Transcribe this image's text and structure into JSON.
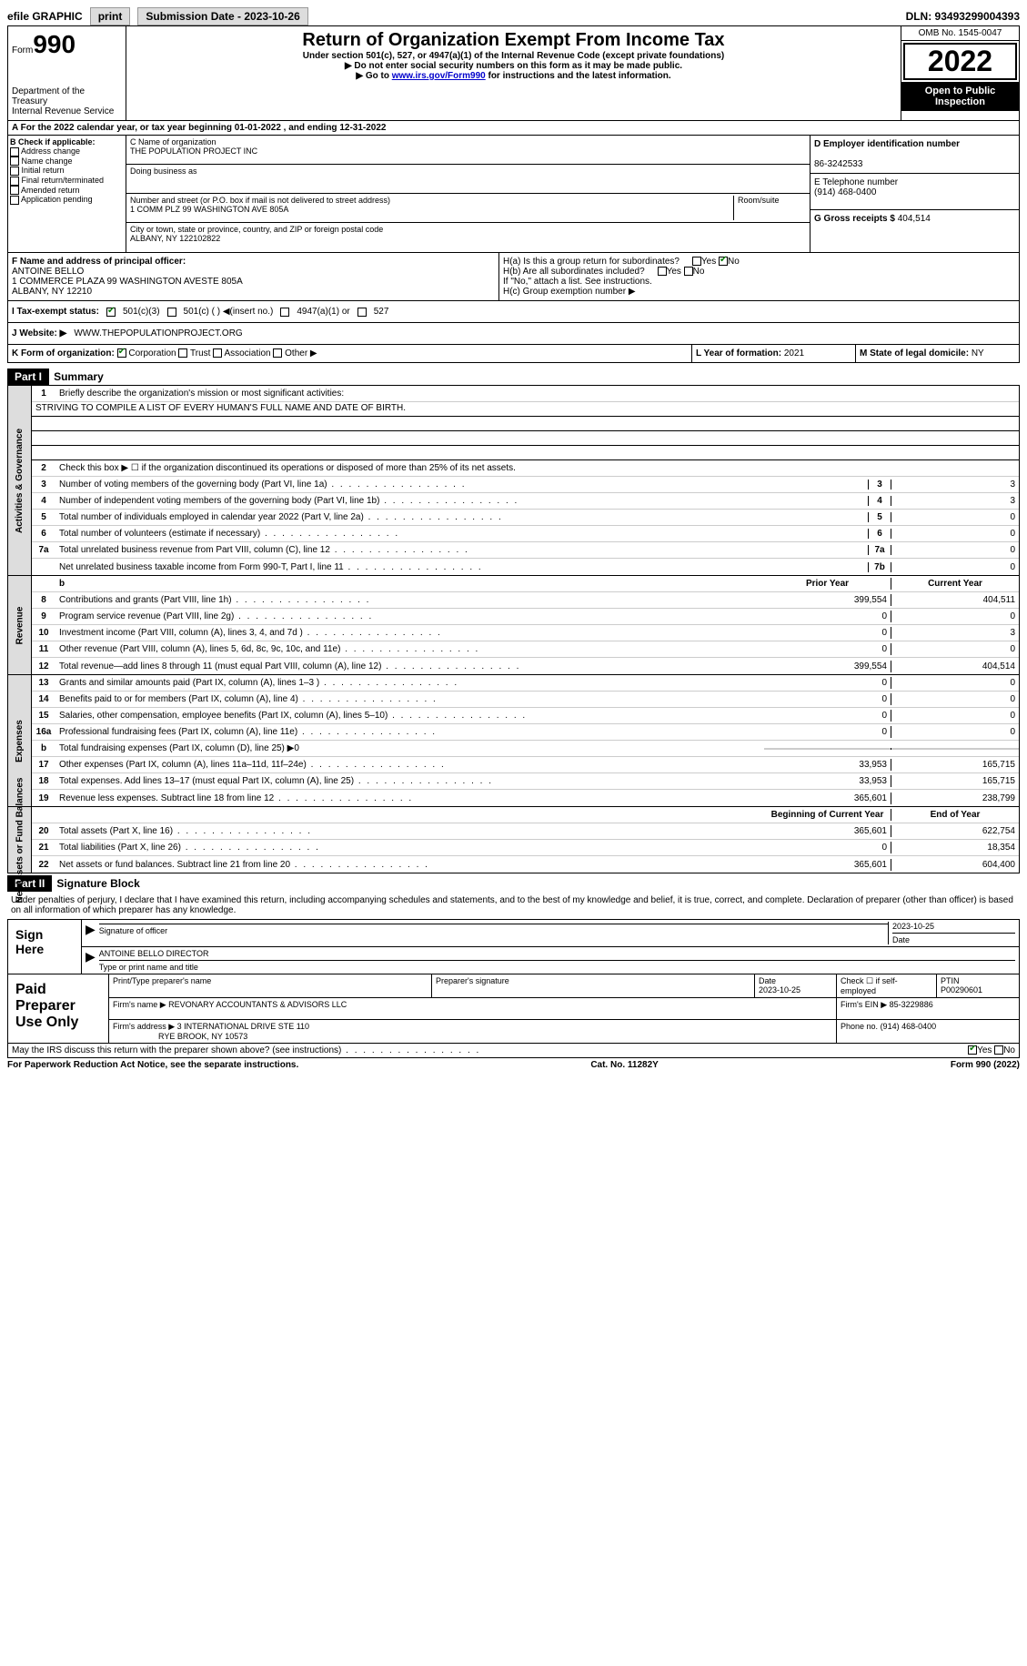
{
  "top": {
    "efile": "efile GRAPHIC",
    "print": "print",
    "sub_label": "Submission Date - 2023-10-26",
    "dln": "DLN: 93493299004393"
  },
  "hdr": {
    "form_label": "Form",
    "form_no": "990",
    "title": "Return of Organization Exempt From Income Tax",
    "sub1": "Under section 501(c), 527, or 4947(a)(1) of the Internal Revenue Code (except private foundations)",
    "sub2": "▶ Do not enter social security numbers on this form as it may be made public.",
    "sub3": "▶ Go to www.irs.gov/Form990 for instructions and the latest information.",
    "dept": "Department of the Treasury",
    "irs": "Internal Revenue Service",
    "omb": "OMB No. 1545-0047",
    "year": "2022",
    "open": "Open to Public Inspection"
  },
  "rowA": "A For the 2022 calendar year, or tax year beginning 01-01-2022    , and ending 12-31-2022",
  "colB": {
    "hdr": "B Check if applicable:",
    "opts": [
      "Address change",
      "Name change",
      "Initial return",
      "Final return/terminated",
      "Amended return",
      "Application pending"
    ]
  },
  "colC": {
    "name_lbl": "C Name of organization",
    "name": "THE POPULATION PROJECT INC",
    "dba_lbl": "Doing business as",
    "addr_lbl": "Number and street (or P.O. box if mail is not delivered to street address)",
    "room_lbl": "Room/suite",
    "addr": "1 COMM PLZ 99 WASHINGTON AVE 805A",
    "city_lbl": "City or town, state or province, country, and ZIP or foreign postal code",
    "city": "ALBANY, NY  122102822"
  },
  "colD": {
    "ein_lbl": "D Employer identification number",
    "ein": "86-3242533",
    "tel_lbl": "E Telephone number",
    "tel": "(914) 468-0400",
    "gross_lbl": "G Gross receipts $",
    "gross": "404,514"
  },
  "f": {
    "lbl": "F  Name and address of principal officer:",
    "name": "ANTOINE BELLO",
    "a1": "1 COMMERCE PLAZA 99 WASHINGTON AVESTE 805A",
    "a2": "ALBANY, NY  12210"
  },
  "h": {
    "a": "H(a)  Is this a group return for subordinates?",
    "b": "H(b)  Are all subordinates included?",
    "note": "If \"No,\" attach a list. See instructions.",
    "c": "H(c)  Group exemption number ▶"
  },
  "i": {
    "lbl": "I   Tax-exempt status:",
    "o1": "501(c)(3)",
    "o2": "501(c) (  ) ◀(insert no.)",
    "o3": "4947(a)(1) or",
    "o4": "527"
  },
  "j": {
    "lbl": "J  Website: ▶",
    "val": "WWW.THEPOPULATIONPROJECT.ORG"
  },
  "k": {
    "lbl": "K Form of organization:",
    "corp": "Corporation",
    "trust": "Trust",
    "assoc": "Association",
    "other": "Other ▶"
  },
  "l": {
    "lbl": "L Year of formation:",
    "val": "2021"
  },
  "m": {
    "lbl": "M State of legal domicile:",
    "val": "NY"
  },
  "part1": {
    "hdr": "Part I",
    "title": "Summary",
    "l1": "Briefly describe the organization's mission or most significant activities:",
    "mission": "STRIVING TO COMPILE A LIST OF EVERY HUMAN'S FULL NAME AND DATE OF BIRTH.",
    "l2": "Check this box ▶ ☐  if the organization discontinued its operations or disposed of more than 25% of its net assets.",
    "lines_gov": [
      {
        "n": "3",
        "d": "Number of voting members of the governing body (Part VI, line 1a)",
        "k": "3",
        "v": "3"
      },
      {
        "n": "4",
        "d": "Number of independent voting members of the governing body (Part VI, line 1b)",
        "k": "4",
        "v": "3"
      },
      {
        "n": "5",
        "d": "Total number of individuals employed in calendar year 2022 (Part V, line 2a)",
        "k": "5",
        "v": "0"
      },
      {
        "n": "6",
        "d": "Total number of volunteers (estimate if necessary)",
        "k": "6",
        "v": "0"
      },
      {
        "n": "7a",
        "d": "Total unrelated business revenue from Part VIII, column (C), line 12",
        "k": "7a",
        "v": "0"
      },
      {
        "n": "",
        "d": "Net unrelated business taxable income from Form 990-T, Part I, line 11",
        "k": "7b",
        "v": "0"
      }
    ],
    "py_hdr": "Prior Year",
    "cy_hdr": "Current Year",
    "lines_rev": [
      {
        "n": "8",
        "d": "Contributions and grants (Part VIII, line 1h)",
        "py": "399,554",
        "cy": "404,511"
      },
      {
        "n": "9",
        "d": "Program service revenue (Part VIII, line 2g)",
        "py": "0",
        "cy": "0"
      },
      {
        "n": "10",
        "d": "Investment income (Part VIII, column (A), lines 3, 4, and 7d )",
        "py": "0",
        "cy": "3"
      },
      {
        "n": "11",
        "d": "Other revenue (Part VIII, column (A), lines 5, 6d, 8c, 9c, 10c, and 11e)",
        "py": "0",
        "cy": "0"
      },
      {
        "n": "12",
        "d": "Total revenue—add lines 8 through 11 (must equal Part VIII, column (A), line 12)",
        "py": "399,554",
        "cy": "404,514"
      }
    ],
    "lines_exp": [
      {
        "n": "13",
        "d": "Grants and similar amounts paid (Part IX, column (A), lines 1–3 )",
        "py": "0",
        "cy": "0"
      },
      {
        "n": "14",
        "d": "Benefits paid to or for members (Part IX, column (A), line 4)",
        "py": "0",
        "cy": "0"
      },
      {
        "n": "15",
        "d": "Salaries, other compensation, employee benefits (Part IX, column (A), lines 5–10)",
        "py": "0",
        "cy": "0"
      },
      {
        "n": "16a",
        "d": "Professional fundraising fees (Part IX, column (A), line 11e)",
        "py": "0",
        "cy": "0"
      },
      {
        "n": "b",
        "d": "Total fundraising expenses (Part IX, column (D), line 25) ▶0",
        "py": "",
        "cy": "",
        "gray": true
      },
      {
        "n": "17",
        "d": "Other expenses (Part IX, column (A), lines 11a–11d, 11f–24e)",
        "py": "33,953",
        "cy": "165,715"
      },
      {
        "n": "18",
        "d": "Total expenses. Add lines 13–17 (must equal Part IX, column (A), line 25)",
        "py": "33,953",
        "cy": "165,715"
      },
      {
        "n": "19",
        "d": "Revenue less expenses. Subtract line 18 from line 12",
        "py": "365,601",
        "cy": "238,799"
      }
    ],
    "by_hdr": "Beginning of Current Year",
    "ey_hdr": "End of Year",
    "lines_net": [
      {
        "n": "20",
        "d": "Total assets (Part X, line 16)",
        "py": "365,601",
        "cy": "622,754"
      },
      {
        "n": "21",
        "d": "Total liabilities (Part X, line 26)",
        "py": "0",
        "cy": "18,354"
      },
      {
        "n": "22",
        "d": "Net assets or fund balances. Subtract line 21 from line 20",
        "py": "365,601",
        "cy": "604,400"
      }
    ],
    "tab_gov": "Activities & Governance",
    "tab_rev": "Revenue",
    "tab_exp": "Expenses",
    "tab_net": "Net Assets or Fund Balances"
  },
  "part2": {
    "hdr": "Part II",
    "title": "Signature Block",
    "decl": "Under penalties of perjury, I declare that I have examined this return, including accompanying schedules and statements, and to the best of my knowledge and belief, it is true, correct, and complete. Declaration of preparer (other than officer) is based on all information of which preparer has any knowledge."
  },
  "sign": {
    "lbl": "Sign Here",
    "sig_lbl": "Signature of officer",
    "date": "2023-10-25",
    "date_lbl": "Date",
    "name": "ANTOINE BELLO  DIRECTOR",
    "name_lbl": "Type or print name and title"
  },
  "paid": {
    "lbl": "Paid Preparer Use Only",
    "pname_lbl": "Print/Type preparer's name",
    "psig_lbl": "Preparer's signature",
    "pdate_lbl": "Date",
    "pdate": "2023-10-25",
    "self_lbl": "Check ☐ if self-employed",
    "ptin_lbl": "PTIN",
    "ptin": "P00290601",
    "firm_lbl": "Firm's name    ▶",
    "firm": "REVONARY ACCOUNTANTS & ADVISORS LLC",
    "fein_lbl": "Firm's EIN ▶",
    "fein": "85-3229886",
    "faddr_lbl": "Firm's address ▶",
    "faddr1": "3 INTERNATIONAL DRIVE STE 110",
    "faddr2": "RYE BROOK, NY  10573",
    "phone_lbl": "Phone no.",
    "phone": "(914) 468-0400"
  },
  "footer": {
    "q": "May the IRS discuss this return with the preparer shown above? (see instructions)",
    "yes": "Yes",
    "no": "No",
    "pra": "For Paperwork Reduction Act Notice, see the separate instructions.",
    "cat": "Cat. No. 11282Y",
    "form": "Form 990 (2022)"
  }
}
